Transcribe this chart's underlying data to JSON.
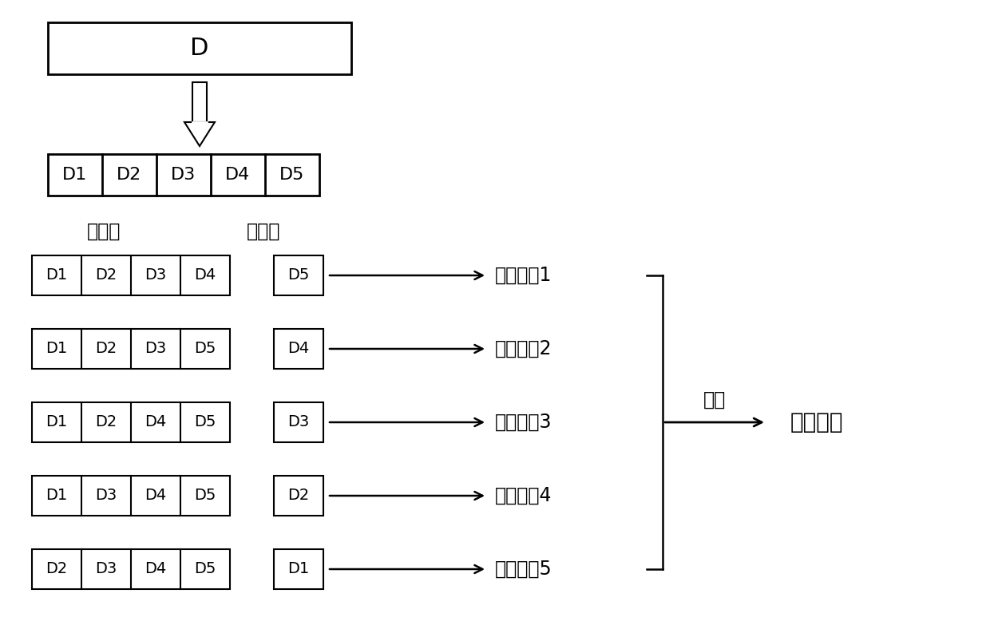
{
  "bg_color": "#ffffff",
  "text_color": "#000000",
  "title": "D",
  "d_parts": [
    "D1",
    "D2",
    "D3",
    "D4",
    "D5"
  ],
  "train_label": "训练集",
  "test_label": "测试集",
  "rows": [
    {
      "train": [
        "D1",
        "D2",
        "D3",
        "D4"
      ],
      "test": "D5",
      "result": "测试结果1"
    },
    {
      "train": [
        "D1",
        "D2",
        "D3",
        "D5"
      ],
      "test": "D4",
      "result": "测试结果2"
    },
    {
      "train": [
        "D1",
        "D2",
        "D4",
        "D5"
      ],
      "test": "D3",
      "result": "测试结果3"
    },
    {
      "train": [
        "D1",
        "D3",
        "D4",
        "D5"
      ],
      "test": "D2",
      "result": "测试结果4"
    },
    {
      "train": [
        "D2",
        "D3",
        "D4",
        "D5"
      ],
      "test": "D1",
      "result": "测试结果5"
    }
  ],
  "avg_label": "平均",
  "return_label": "返回结果",
  "font_size_large": 20,
  "font_size_med": 17,
  "font_size_small": 15
}
